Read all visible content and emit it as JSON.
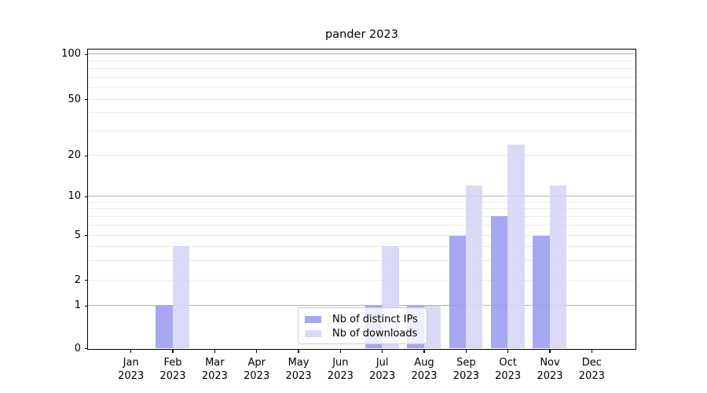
{
  "chart_data": {
    "type": "bar",
    "title": "pander 2023",
    "year_label": "2023",
    "categories": [
      "Jan",
      "Feb",
      "Mar",
      "Apr",
      "May",
      "Jun",
      "Jul",
      "Aug",
      "Sep",
      "Oct",
      "Nov",
      "Dec"
    ],
    "series": [
      {
        "name": "Nb of distinct IPs",
        "color": "#9898f0",
        "values": [
          0,
          1,
          0,
          0,
          0,
          0,
          1,
          1,
          5,
          7,
          5,
          0
        ]
      },
      {
        "name": "Nb of downloads",
        "color": "#d4d4f6",
        "values": [
          0,
          4,
          0,
          0,
          0,
          0,
          4,
          1,
          12,
          24,
          12,
          0
        ]
      }
    ],
    "yticks": [
      0,
      1,
      2,
      5,
      10,
      20,
      50,
      100
    ],
    "major_gridlines": [
      1,
      10,
      100
    ],
    "minor_gridlines": [
      2,
      3,
      4,
      5,
      6,
      7,
      8,
      9,
      20,
      30,
      40,
      50,
      60,
      70,
      80,
      90
    ],
    "ylim": [
      0,
      110
    ],
    "yscale": "symlog",
    "grid": true,
    "legend": {
      "position": "lower center"
    },
    "colors": {
      "major_grid": "#b4b4b4",
      "minor_grid": "#ebebeb",
      "spine": "#000000",
      "text": "#000000"
    }
  }
}
